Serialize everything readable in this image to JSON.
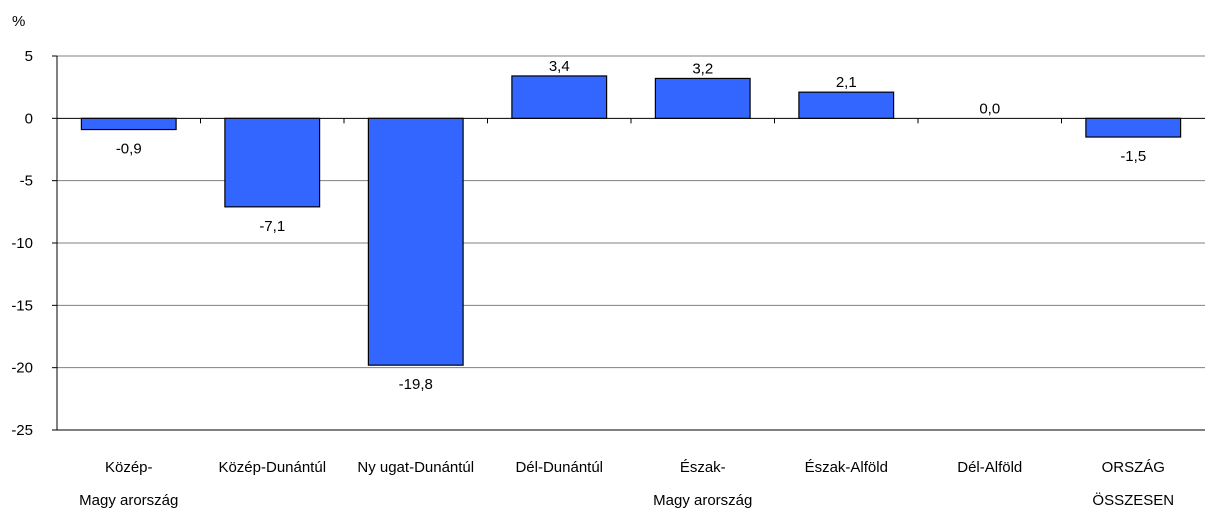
{
  "chart_data": {
    "type": "bar",
    "ylabel": "%",
    "ylim": [
      -25,
      5
    ],
    "yticks": [
      5,
      0,
      -5,
      -10,
      -15,
      -20,
      -25
    ],
    "ytick_labels": [
      "5",
      "0",
      "-5",
      "-10",
      "-15",
      "-20",
      "-25"
    ],
    "grid": true,
    "categories": [
      [
        "Közép-",
        "Magy arország"
      ],
      [
        "Közép-Dunántúl"
      ],
      [
        "Ny ugat-Dunántúl"
      ],
      [
        "Dél-Dunántúl"
      ],
      [
        "Észak-",
        "Magy arország"
      ],
      [
        "Észak-Alföld"
      ],
      [
        "Dél-Alföld"
      ],
      [
        "ORSZÁG",
        "ÖSSZESEN"
      ]
    ],
    "values": [
      -0.9,
      -7.1,
      -19.8,
      3.4,
      3.2,
      2.1,
      0.0,
      -1.5
    ],
    "data_labels": [
      "-0,9",
      "-7,1",
      "-19,8",
      "3,4",
      "3,2",
      "2,1",
      "0,0",
      "-1,5"
    ],
    "colors": {
      "bar_fill": "#3366ff",
      "bar_stroke": "#000000",
      "grid": "#808080",
      "axis": "#000000"
    }
  }
}
